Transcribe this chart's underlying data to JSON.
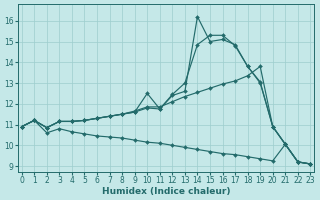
{
  "xlabel": "Humidex (Indice chaleur)",
  "bg_color": "#c5e8e8",
  "line_color": "#236b6b",
  "grid_color": "#9ecece",
  "xlim": [
    -0.3,
    23.3
  ],
  "ylim": [
    8.7,
    16.8
  ],
  "xticks": [
    0,
    1,
    2,
    3,
    4,
    5,
    6,
    7,
    8,
    9,
    10,
    11,
    12,
    13,
    14,
    15,
    16,
    17,
    18,
    19,
    20,
    21,
    22,
    23
  ],
  "yticks": [
    9,
    10,
    11,
    12,
    13,
    14,
    15,
    16
  ],
  "line_spike_x": [
    0,
    1,
    2,
    3,
    4,
    5,
    6,
    7,
    8,
    9,
    10,
    11,
    12,
    13,
    14,
    15,
    16,
    17,
    18,
    19,
    20,
    21,
    22,
    23
  ],
  "line_spike_y": [
    10.9,
    11.2,
    10.85,
    11.15,
    11.15,
    11.2,
    11.3,
    11.4,
    11.5,
    11.6,
    11.8,
    11.75,
    12.4,
    12.6,
    16.2,
    15.0,
    15.1,
    14.85,
    13.8,
    13.0,
    10.9,
    10.05,
    9.2,
    9.1
  ],
  "line_main_x": [
    0,
    1,
    2,
    3,
    4,
    5,
    6,
    7,
    8,
    9,
    10,
    11,
    12,
    13,
    14,
    15,
    16,
    17,
    18,
    19,
    20,
    21,
    22,
    23
  ],
  "line_main_y": [
    10.9,
    11.2,
    10.85,
    11.15,
    11.15,
    11.2,
    11.3,
    11.4,
    11.5,
    11.6,
    12.5,
    11.75,
    12.45,
    13.0,
    14.85,
    15.3,
    15.3,
    14.8,
    13.8,
    13.05,
    10.9,
    10.05,
    9.2,
    9.1
  ],
  "line_up_x": [
    0,
    1,
    2,
    3,
    4,
    5,
    6,
    7,
    8,
    9,
    10,
    11,
    12,
    13,
    14,
    15,
    16,
    17,
    18,
    19,
    20,
    21,
    22,
    23
  ],
  "line_up_y": [
    10.9,
    11.2,
    10.85,
    11.15,
    11.15,
    11.2,
    11.3,
    11.4,
    11.5,
    11.65,
    11.85,
    11.85,
    12.1,
    12.35,
    12.55,
    12.75,
    12.95,
    13.1,
    13.35,
    13.8,
    10.9,
    10.05,
    9.2,
    9.1
  ],
  "line_down_x": [
    0,
    1,
    2,
    3,
    4,
    5,
    6,
    7,
    8,
    9,
    10,
    11,
    12,
    13,
    14,
    15,
    16,
    17,
    18,
    19,
    20,
    21,
    22,
    23
  ],
  "line_down_y": [
    10.9,
    11.2,
    10.6,
    10.8,
    10.65,
    10.55,
    10.45,
    10.4,
    10.35,
    10.25,
    10.15,
    10.1,
    10.0,
    9.9,
    9.8,
    9.7,
    9.6,
    9.55,
    9.45,
    9.35,
    9.25,
    10.05,
    9.2,
    9.1
  ]
}
